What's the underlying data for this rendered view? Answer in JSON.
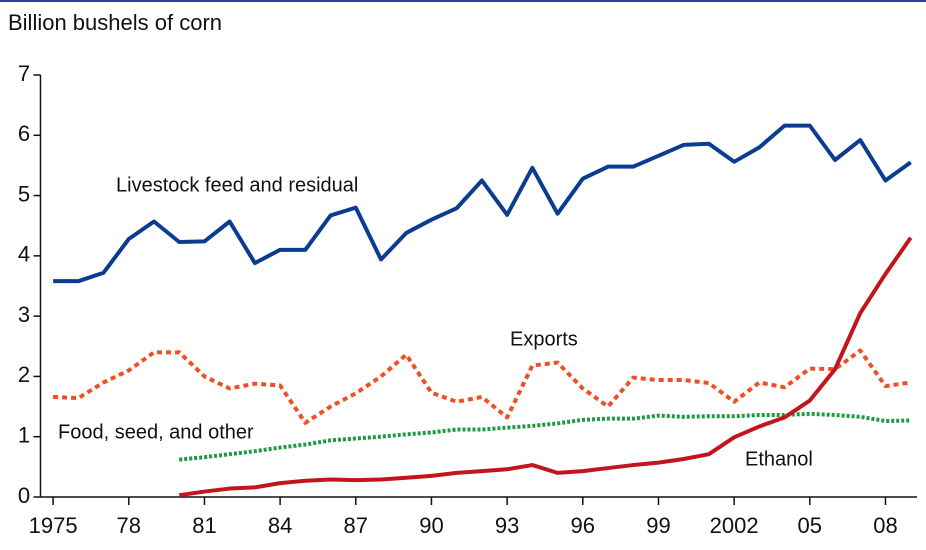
{
  "chart_data": {
    "type": "line",
    "y_label": "Billion bushels of corn",
    "x": [
      1975,
      1976,
      1977,
      1978,
      1979,
      1980,
      1981,
      1982,
      1983,
      1984,
      1985,
      1986,
      1987,
      1988,
      1989,
      1990,
      1991,
      1992,
      1993,
      1994,
      1995,
      1996,
      1997,
      1998,
      1999,
      2000,
      2001,
      2002,
      2003,
      2004,
      2005,
      2006,
      2007,
      2008,
      2009
    ],
    "series": [
      {
        "name": "Livestock feed and residual",
        "color": "#0a3d91",
        "style": "solid",
        "values": [
          3.58,
          3.58,
          3.72,
          4.28,
          4.57,
          4.23,
          4.24,
          4.57,
          3.88,
          4.1,
          4.1,
          4.67,
          4.8,
          3.94,
          4.38,
          4.6,
          4.79,
          5.25,
          4.68,
          5.46,
          4.7,
          5.28,
          5.48,
          5.48,
          5.66,
          5.84,
          5.86,
          5.56,
          5.8,
          6.16,
          6.16,
          5.59,
          5.92,
          5.25,
          5.55
        ]
      },
      {
        "name": "Exports",
        "color": "#f04e23",
        "style": "dashed",
        "values": [
          1.66,
          1.64,
          1.9,
          2.1,
          2.4,
          2.4,
          2.0,
          1.8,
          1.88,
          1.85,
          1.23,
          1.5,
          1.72,
          2.0,
          2.36,
          1.73,
          1.58,
          1.66,
          1.32,
          2.18,
          2.23,
          1.8,
          1.5,
          1.98,
          1.94,
          1.94,
          1.89,
          1.58,
          1.9,
          1.82,
          2.13,
          2.12,
          2.43,
          1.84,
          1.9
        ]
      },
      {
        "name": "Food, seed, and other",
        "color": "#1e9a45",
        "style": "dotted",
        "values": [
          null,
          null,
          null,
          null,
          null,
          0.62,
          0.66,
          0.71,
          0.76,
          0.82,
          0.87,
          0.94,
          0.97,
          1.0,
          1.04,
          1.07,
          1.12,
          1.12,
          1.15,
          1.18,
          1.22,
          1.28,
          1.3,
          1.3,
          1.35,
          1.33,
          1.34,
          1.34,
          1.36,
          1.36,
          1.38,
          1.36,
          1.33,
          1.26,
          1.27
        ]
      },
      {
        "name": "Ethanol",
        "color": "#c3161c",
        "style": "solid",
        "values": [
          null,
          null,
          null,
          null,
          null,
          0.03,
          0.09,
          0.14,
          0.16,
          0.23,
          0.27,
          0.29,
          0.28,
          0.29,
          0.32,
          0.35,
          0.4,
          0.43,
          0.46,
          0.53,
          0.4,
          0.43,
          0.48,
          0.53,
          0.57,
          0.63,
          0.71,
          0.99,
          1.17,
          1.32,
          1.6,
          2.12,
          3.05,
          3.7,
          4.3
        ]
      }
    ],
    "xlim": [
      1974.5,
      2009.25
    ],
    "xticks": [
      {
        "value": 1975,
        "label": "1975"
      },
      {
        "value": 1978,
        "label": "78"
      },
      {
        "value": 1981,
        "label": "81"
      },
      {
        "value": 1984,
        "label": "84"
      },
      {
        "value": 1987,
        "label": "87"
      },
      {
        "value": 1990,
        "label": "90"
      },
      {
        "value": 1993,
        "label": "93"
      },
      {
        "value": 1996,
        "label": "96"
      },
      {
        "value": 1999,
        "label": "99"
      },
      {
        "value": 2002,
        "label": "2002"
      },
      {
        "value": 2005,
        "label": "05"
      },
      {
        "value": 2008,
        "label": "08"
      }
    ],
    "ylim": [
      0,
      7
    ],
    "yticks": [
      0,
      1,
      2,
      3,
      4,
      5,
      6,
      7
    ],
    "grid": false
  }
}
